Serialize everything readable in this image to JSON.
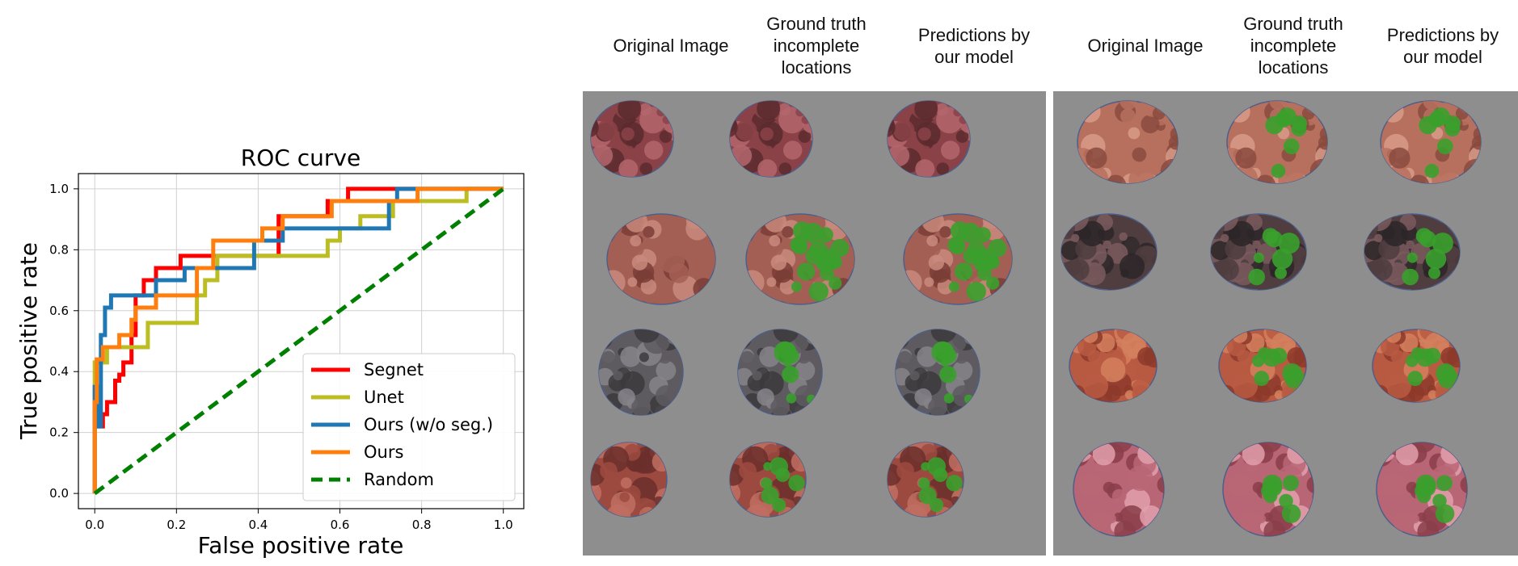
{
  "chart_data": {
    "type": "line",
    "title": "ROC curve",
    "xlabel": "False positive rate",
    "ylabel": "True positive rate",
    "xlim": [
      -0.04,
      1.05
    ],
    "ylim": [
      -0.05,
      1.05
    ],
    "xticks": [
      "0.0",
      "0.2",
      "0.4",
      "0.6",
      "0.8",
      "1.0"
    ],
    "yticks": [
      "0.0",
      "0.2",
      "0.4",
      "0.6",
      "0.8",
      "1.0"
    ],
    "grid": true,
    "legend_position": "lower-right",
    "series": [
      {
        "name": "Segnet",
        "color": "#ff0000",
        "dash": false,
        "points": [
          [
            0,
            0
          ],
          [
            0,
            0.35
          ],
          [
            0.01,
            0.35
          ],
          [
            0.01,
            0.22
          ],
          [
            0.02,
            0.22
          ],
          [
            0.02,
            0.26
          ],
          [
            0.03,
            0.26
          ],
          [
            0.03,
            0.3
          ],
          [
            0.05,
            0.3
          ],
          [
            0.05,
            0.37
          ],
          [
            0.06,
            0.37
          ],
          [
            0.06,
            0.39
          ],
          [
            0.07,
            0.39
          ],
          [
            0.07,
            0.43
          ],
          [
            0.09,
            0.43
          ],
          [
            0.09,
            0.52
          ],
          [
            0.1,
            0.52
          ],
          [
            0.1,
            0.65
          ],
          [
            0.12,
            0.65
          ],
          [
            0.12,
            0.7
          ],
          [
            0.15,
            0.7
          ],
          [
            0.15,
            0.74
          ],
          [
            0.21,
            0.74
          ],
          [
            0.21,
            0.78
          ],
          [
            0.29,
            0.78
          ],
          [
            0.29,
            0.78
          ],
          [
            0.45,
            0.78
          ],
          [
            0.45,
            0.91
          ],
          [
            0.57,
            0.91
          ],
          [
            0.57,
            0.96
          ],
          [
            0.62,
            0.96
          ],
          [
            0.62,
            1.0
          ],
          [
            1.0,
            1.0
          ]
        ]
      },
      {
        "name": "Unet",
        "color": "#bcbd22",
        "dash": false,
        "points": [
          [
            0,
            0
          ],
          [
            0,
            0.43
          ],
          [
            0.03,
            0.43
          ],
          [
            0.03,
            0.48
          ],
          [
            0.08,
            0.48
          ],
          [
            0.08,
            0.48
          ],
          [
            0.13,
            0.48
          ],
          [
            0.13,
            0.56
          ],
          [
            0.18,
            0.56
          ],
          [
            0.18,
            0.56
          ],
          [
            0.25,
            0.56
          ],
          [
            0.25,
            0.65
          ],
          [
            0.27,
            0.65
          ],
          [
            0.27,
            0.7
          ],
          [
            0.3,
            0.7
          ],
          [
            0.3,
            0.78
          ],
          [
            0.57,
            0.78
          ],
          [
            0.57,
            0.83
          ],
          [
            0.6,
            0.83
          ],
          [
            0.6,
            0.87
          ],
          [
            0.65,
            0.87
          ],
          [
            0.65,
            0.91
          ],
          [
            0.73,
            0.91
          ],
          [
            0.73,
            0.96
          ],
          [
            0.91,
            0.96
          ],
          [
            0.91,
            1.0
          ],
          [
            1.0,
            1.0
          ]
        ]
      },
      {
        "name": "Ours (w/o seg.)",
        "color": "#1f77b4",
        "dash": false,
        "points": [
          [
            0,
            0
          ],
          [
            0,
            0.35
          ],
          [
            0.01,
            0.35
          ],
          [
            0.01,
            0.22
          ],
          [
            0.015,
            0.22
          ],
          [
            0.015,
            0.52
          ],
          [
            0.025,
            0.52
          ],
          [
            0.025,
            0.61
          ],
          [
            0.04,
            0.61
          ],
          [
            0.04,
            0.65
          ],
          [
            0.12,
            0.65
          ],
          [
            0.12,
            0.65
          ],
          [
            0.15,
            0.65
          ],
          [
            0.15,
            0.7
          ],
          [
            0.22,
            0.7
          ],
          [
            0.22,
            0.74
          ],
          [
            0.39,
            0.74
          ],
          [
            0.39,
            0.83
          ],
          [
            0.46,
            0.83
          ],
          [
            0.46,
            0.87
          ],
          [
            0.72,
            0.87
          ],
          [
            0.72,
            0.96
          ],
          [
            0.74,
            0.96
          ],
          [
            0.74,
            1.0
          ],
          [
            1.0,
            1.0
          ]
        ]
      },
      {
        "name": "Ours",
        "color": "#ff7f0e",
        "dash": false,
        "points": [
          [
            0,
            0
          ],
          [
            0,
            0.3
          ],
          [
            0.005,
            0.3
          ],
          [
            0.005,
            0.44
          ],
          [
            0.02,
            0.44
          ],
          [
            0.02,
            0.48
          ],
          [
            0.06,
            0.48
          ],
          [
            0.06,
            0.52
          ],
          [
            0.09,
            0.52
          ],
          [
            0.09,
            0.57
          ],
          [
            0.1,
            0.57
          ],
          [
            0.1,
            0.61
          ],
          [
            0.15,
            0.61
          ],
          [
            0.15,
            0.65
          ],
          [
            0.25,
            0.65
          ],
          [
            0.25,
            0.74
          ],
          [
            0.29,
            0.74
          ],
          [
            0.29,
            0.83
          ],
          [
            0.41,
            0.83
          ],
          [
            0.41,
            0.87
          ],
          [
            0.46,
            0.87
          ],
          [
            0.46,
            0.91
          ],
          [
            0.58,
            0.91
          ],
          [
            0.58,
            0.96
          ],
          [
            0.79,
            0.96
          ],
          [
            0.79,
            1.0
          ],
          [
            1.0,
            1.0
          ]
        ]
      },
      {
        "name": "Random",
        "color": "#008000",
        "dash": true,
        "points": [
          [
            0,
            0
          ],
          [
            1,
            1
          ]
        ]
      }
    ]
  },
  "columns": {
    "left": [
      [
        "Original Image"
      ],
      [
        "Ground truth",
        "incomplete",
        "locations"
      ],
      [
        "Predictions by",
        "our model"
      ]
    ],
    "right": [
      [
        "Original Image"
      ],
      [
        "Ground truth",
        "incomplete",
        "locations"
      ],
      [
        "Predictions by",
        "our model"
      ]
    ]
  }
}
